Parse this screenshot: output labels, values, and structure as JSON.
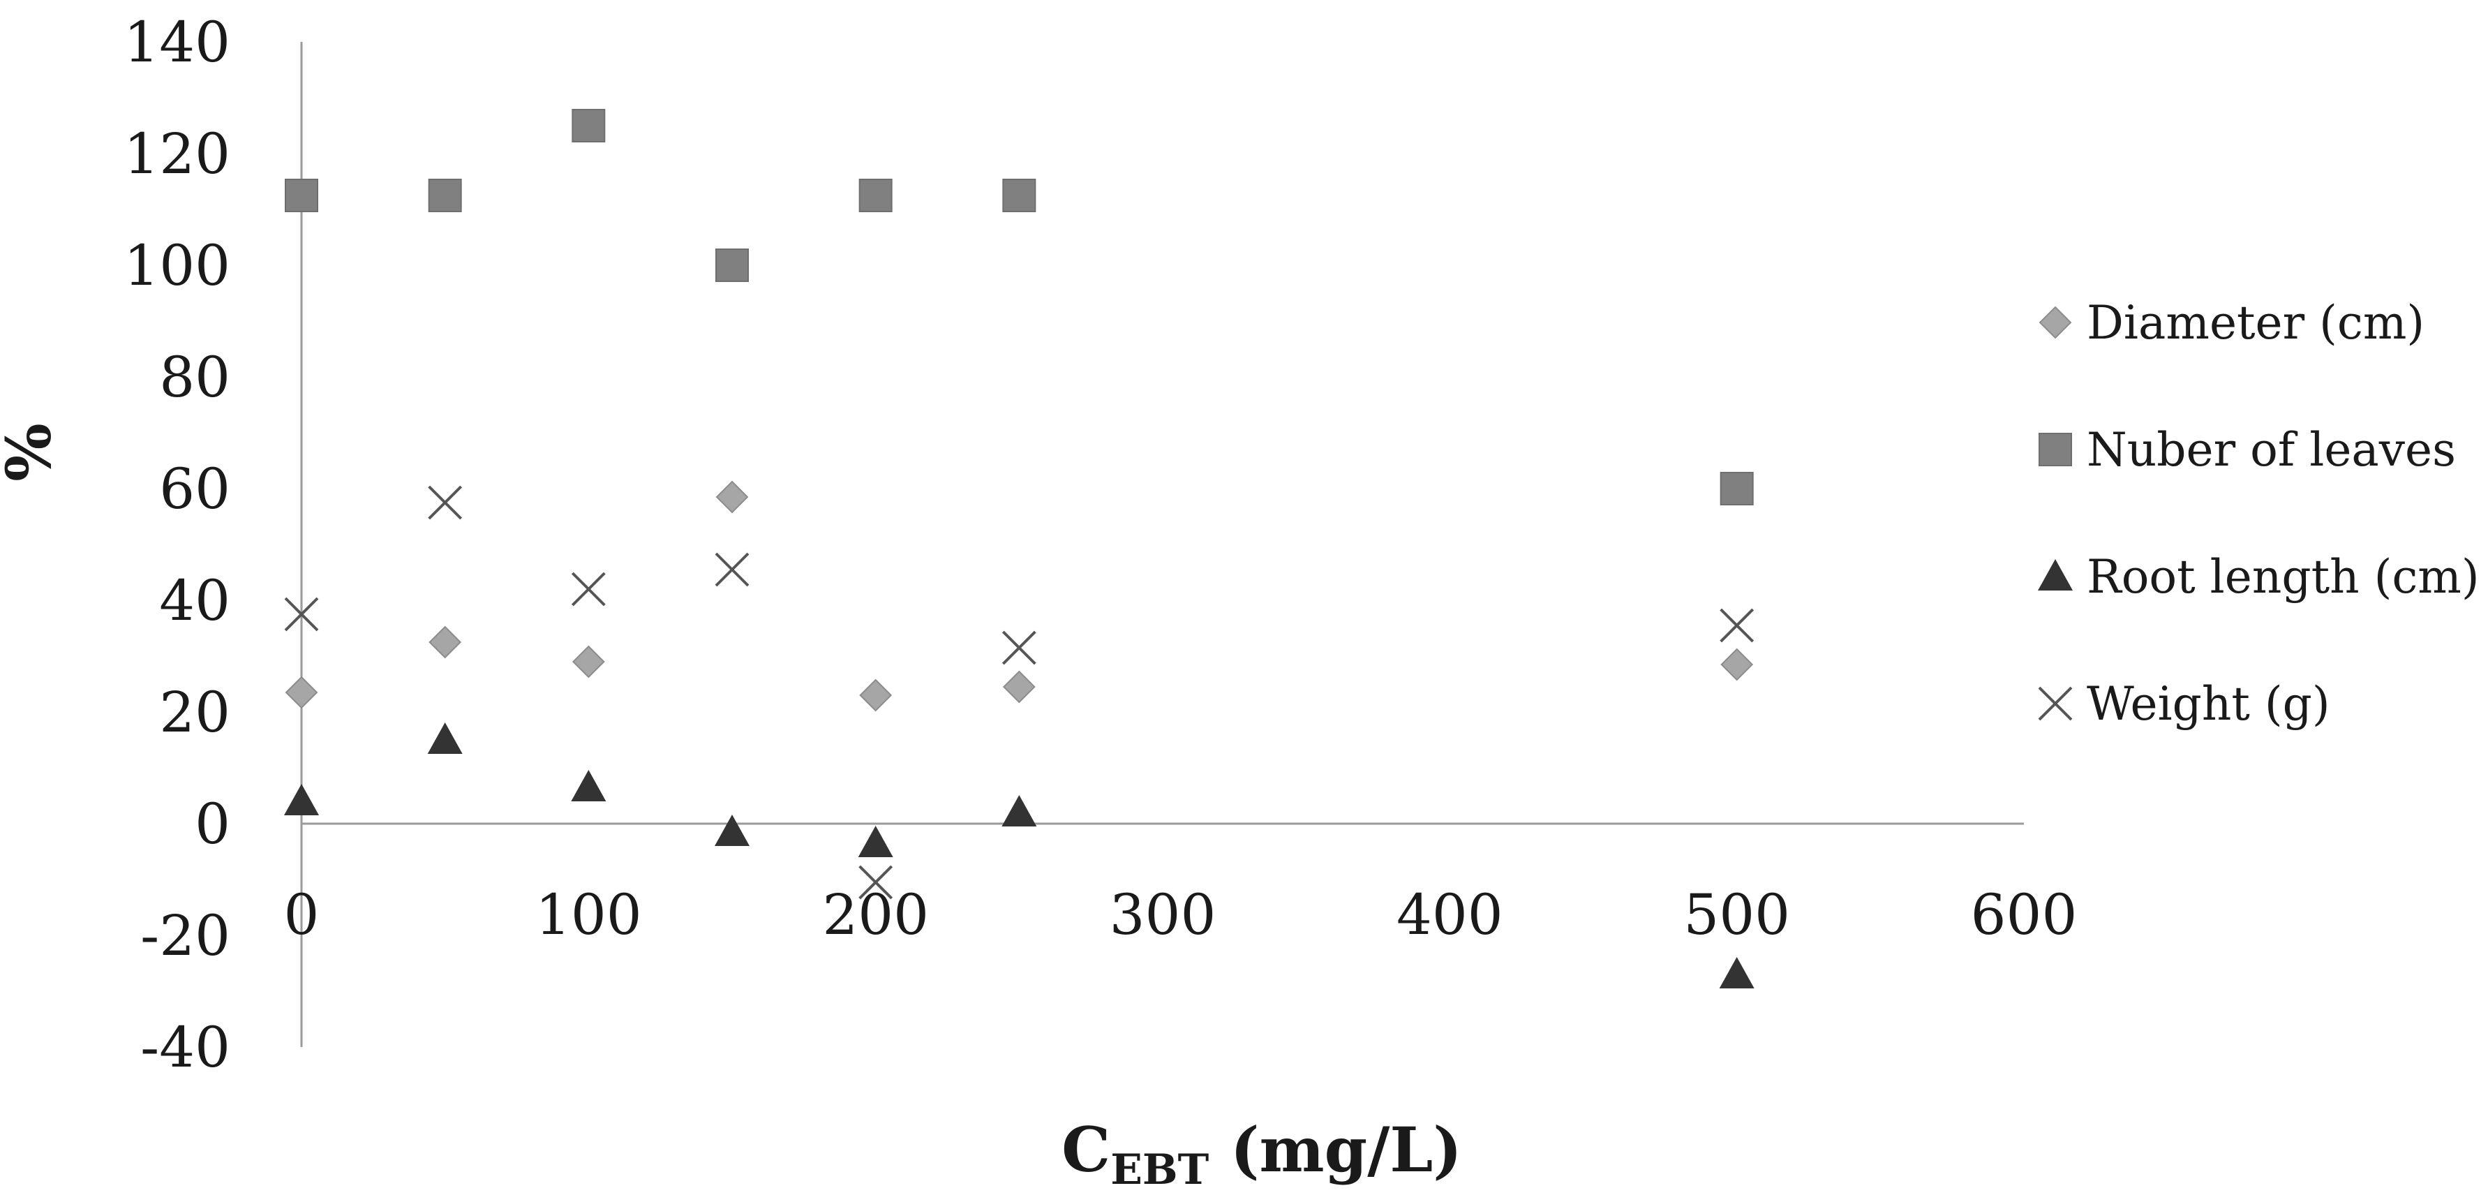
{
  "chart_data": {
    "type": "scatter",
    "xlabel": "C",
    "xlabel_sub": "EBT",
    "xlabel_unit": " (mg/L)",
    "ylabel": "%",
    "xlim": [
      0,
      600
    ],
    "ylim": [
      -40,
      140
    ],
    "xticks": [
      0,
      100,
      200,
      300,
      400,
      500,
      600
    ],
    "yticks": [
      -40,
      -20,
      0,
      20,
      40,
      60,
      80,
      100,
      120,
      140
    ],
    "grid": false,
    "legend_position": "right",
    "series": [
      {
        "name": "Diameter (cm)",
        "marker": "diamond",
        "color": "#a6a6a6",
        "x": [
          0,
          50,
          100,
          150,
          200,
          250,
          500
        ],
        "y": [
          23.5,
          32.5,
          29,
          58.5,
          23,
          24.5,
          28.5
        ]
      },
      {
        "name": "Nuber of leaves",
        "marker": "square",
        "color": "#808080",
        "x": [
          0,
          50,
          100,
          150,
          200,
          250,
          500
        ],
        "y": [
          112.5,
          112.5,
          125,
          100,
          112.5,
          112.5,
          60
        ]
      },
      {
        "name": "Root length (cm)",
        "marker": "triangle",
        "color": "#333333",
        "x": [
          0,
          50,
          100,
          150,
          200,
          250,
          500
        ],
        "y": [
          4,
          15,
          6.5,
          -1.5,
          -3.5,
          2,
          -27
        ]
      },
      {
        "name": "Weight (g)",
        "marker": "x",
        "color": "#555555",
        "x": [
          0,
          50,
          100,
          150,
          200,
          250,
          500
        ],
        "y": [
          37.5,
          57.5,
          42,
          45.5,
          -10.5,
          31.5,
          35.5
        ]
      }
    ]
  }
}
